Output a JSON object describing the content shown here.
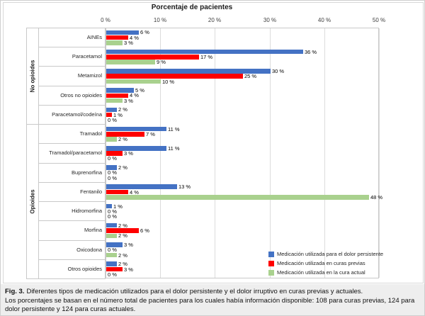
{
  "figure": {
    "caption_label": "Fig. 3.",
    "caption_sentence1": "Diferentes tipos de medicación utilizados para el dolor persistente y el dolor irruptivo en curas previas y actuales.",
    "caption_sentence2": "Los porcentajes se basan en el número total de pacientes para los cuales había información disponible: 108 para curas previas, 124 para dolor persistente y 124 para curas actuales."
  },
  "chart_data": {
    "type": "bar",
    "orientation": "horizontal",
    "title": "Porcentaje de pacientes",
    "x_axis": {
      "ticks": [
        "0 %",
        "10 %",
        "20 %",
        "30 %",
        "40 %",
        "50 %"
      ],
      "min": 0,
      "max": 50,
      "unit": "%"
    },
    "gridlines": true,
    "legend_position": "bottom-right",
    "data_label_format": "{v} %",
    "groups": [
      {
        "label": "No opioides",
        "categories": [
          "AINEs",
          "Paracetamol",
          "Metamizol",
          "Otros no opioides",
          "Paracetamol/codeína"
        ]
      },
      {
        "label": "Opioides",
        "categories": [
          "Tramadol",
          "Tramadol/paracetamol",
          "Buprenorfina",
          "Fentanilo",
          "Hidromorfina",
          "Morfina",
          "Oxicodona",
          "Otros opioides"
        ]
      }
    ],
    "categories": [
      "AINEs",
      "Paracetamol",
      "Metamizol",
      "Otros no opioides",
      "Paracetamol/codeína",
      "Tramadol",
      "Tramadol/paracetamol",
      "Buprenorfina",
      "Fentanilo",
      "Hidromorfina",
      "Morfina",
      "Oxicodona",
      "Otros opioides"
    ],
    "series": [
      {
        "name": "Medicación utilizada para el dolor persistente",
        "color": "#4472C4",
        "values": [
          6,
          36,
          30,
          5,
          2,
          11,
          11,
          2,
          13,
          1,
          2,
          3,
          2
        ]
      },
      {
        "name": "Medicación utilizada en curas previas",
        "color": "#FF0000",
        "values": [
          4,
          17,
          25,
          4,
          1,
          7,
          3,
          0,
          4,
          0,
          6,
          0,
          3
        ]
      },
      {
        "name": "Medicación utilizada en la cura actual",
        "color": "#A9D18E",
        "values": [
          3,
          9,
          10,
          3,
          0,
          2,
          0,
          0,
          48,
          0,
          2,
          2,
          0
        ]
      }
    ]
  }
}
